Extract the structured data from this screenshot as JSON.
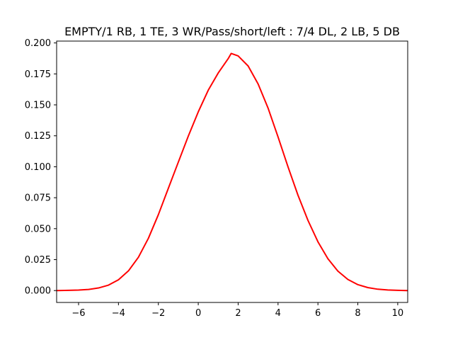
{
  "chart_data": {
    "type": "line",
    "title": "EMPTY/1 RB, 1 TE, 3 WR/Pass/short/left : 7/4 DL, 2 LB, 5 DB",
    "xlabel": "",
    "ylabel": "",
    "xlim": [
      -7.1,
      10.5
    ],
    "ylim": [
      -0.0096,
      0.2015
    ],
    "xticks": [
      -6,
      -4,
      -2,
      0,
      2,
      4,
      6,
      8,
      10
    ],
    "xtick_labels": [
      "−6",
      "−4",
      "−2",
      "0",
      "2",
      "4",
      "6",
      "8",
      "10"
    ],
    "yticks": [
      0.0,
      0.025,
      0.05,
      0.075,
      0.1,
      0.125,
      0.15,
      0.175,
      0.2
    ],
    "ytick_labels": [
      "0.000",
      "0.025",
      "0.050",
      "0.075",
      "0.100",
      "0.125",
      "0.150",
      "0.175",
      "0.200"
    ],
    "grid": false,
    "series": [
      {
        "color": "#ff0000",
        "x": [
          -7.1,
          -6.5,
          -6,
          -5.5,
          -5,
          -4.5,
          -4,
          -3.5,
          -3,
          -2.5,
          -2,
          -1.5,
          -1,
          -0.5,
          0,
          0.5,
          1,
          1.5,
          1.65,
          2,
          2.5,
          3,
          3.5,
          4,
          4.5,
          5,
          5.5,
          6,
          6.5,
          7,
          7.5,
          8,
          8.5,
          9,
          9.5,
          10,
          10.5
        ],
        "y": [
          0.0,
          0.0002,
          0.0004,
          0.0009,
          0.0021,
          0.0044,
          0.0087,
          0.0159,
          0.0269,
          0.0422,
          0.0613,
          0.0826,
          0.1037,
          0.1247,
          0.1443,
          0.1618,
          0.1757,
          0.1873,
          0.1915,
          0.1895,
          0.1814,
          0.1669,
          0.1474,
          0.1241,
          0.0999,
          0.077,
          0.0567,
          0.0394,
          0.0257,
          0.0157,
          0.009,
          0.0048,
          0.0024,
          0.0011,
          0.0005,
          0.0002,
          0.0
        ]
      }
    ]
  }
}
